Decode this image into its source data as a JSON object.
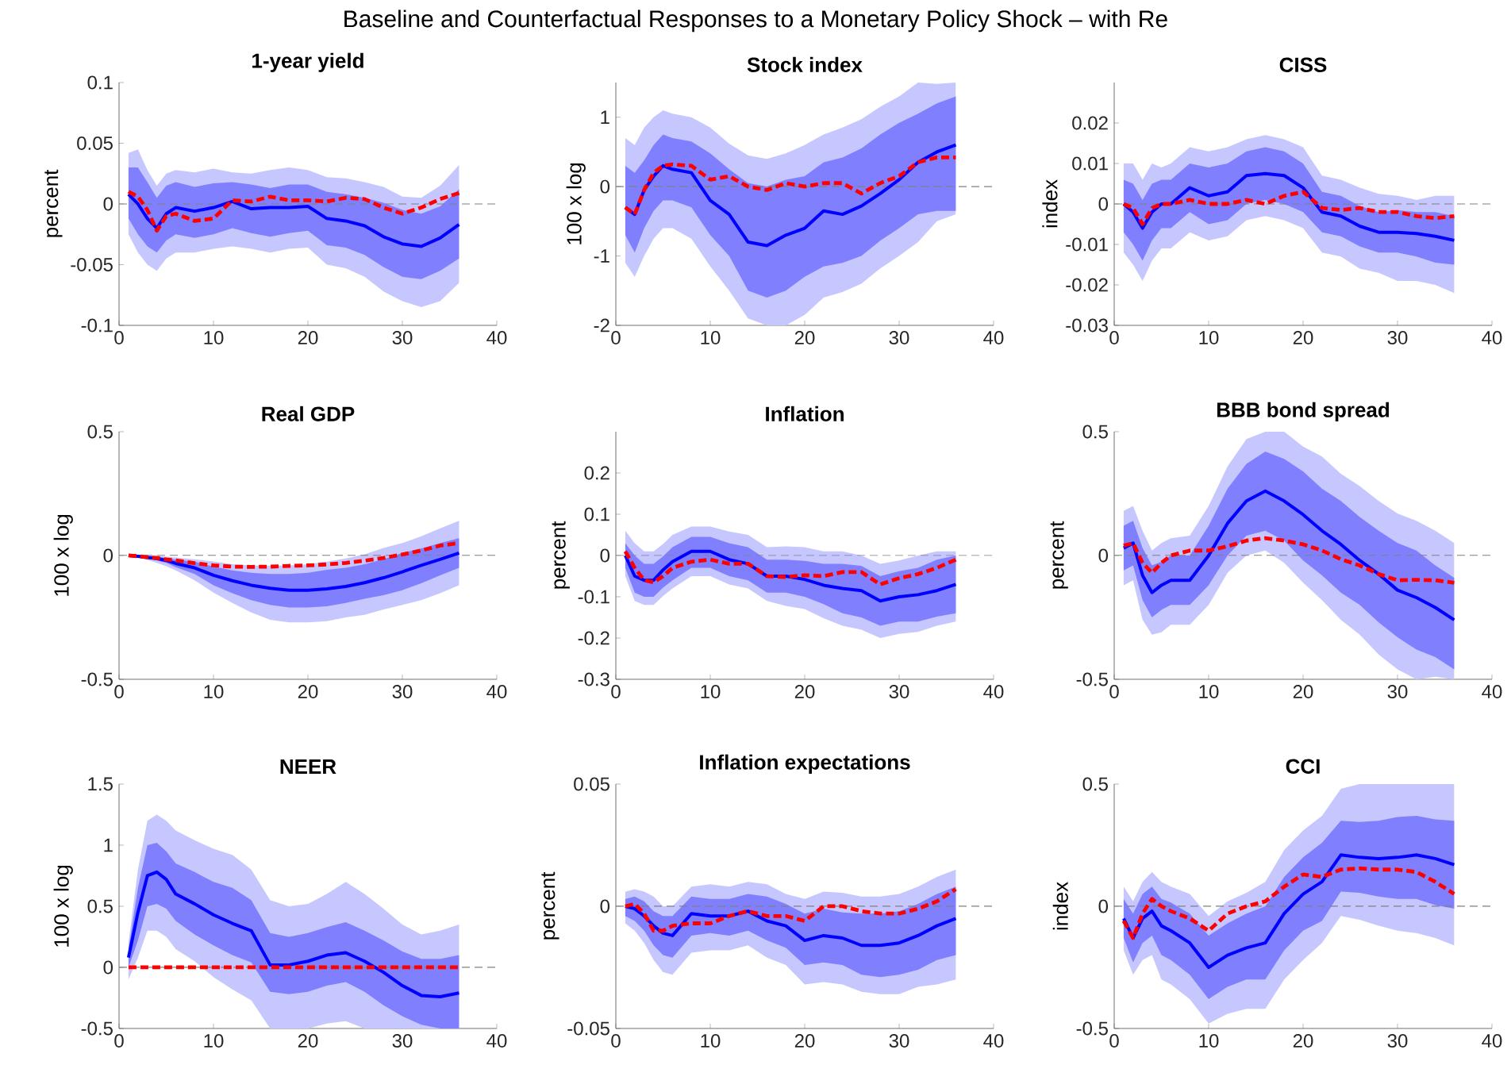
{
  "chart_data": [
    {
      "type": "line",
      "title": "1-year yield",
      "ylabel": "percent",
      "annotations": [
        "Baseline and Counterfactual Responses to a Monetary Policy Shock – with Re"
      ],
      "x": [
        1,
        2,
        3,
        4,
        5,
        6,
        8,
        10,
        12,
        14,
        16,
        18,
        20,
        22,
        24,
        26,
        28,
        30,
        32,
        34,
        36
      ],
      "xlim": [
        0,
        40
      ],
      "xticks": [
        0,
        10,
        20,
        30,
        40
      ],
      "ylim": [
        -0.1,
        0.1
      ],
      "yticks": [
        -0.1,
        -0.05,
        0,
        0.05,
        0.1
      ],
      "ref_lines": [
        {
          "axis": "y",
          "value": 0,
          "color": "#808080",
          "line_style": "dashed"
        }
      ],
      "series": [
        {
          "color": "#0000ff",
          "line_style": "solid",
          "values": [
            0.008,
            0,
            -0.012,
            -0.02,
            -0.008,
            -0.003,
            -0.006,
            -0.003,
            0.002,
            -0.004,
            -0.003,
            -0.003,
            -0.002,
            -0.012,
            -0.014,
            -0.018,
            -0.027,
            -0.033,
            -0.035,
            -0.028,
            -0.017
          ],
          "upper": [
            0.042,
            0.045,
            0.028,
            0.015,
            0.025,
            0.028,
            0.026,
            0.029,
            0.026,
            0.025,
            0.028,
            0.03,
            0.028,
            0.022,
            0.021,
            0.018,
            0.014,
            0.006,
            0.005,
            0.015,
            0.032
          ],
          "lower": [
            -0.025,
            -0.04,
            -0.05,
            -0.055,
            -0.045,
            -0.04,
            -0.04,
            -0.037,
            -0.035,
            -0.037,
            -0.04,
            -0.037,
            -0.036,
            -0.05,
            -0.053,
            -0.06,
            -0.072,
            -0.08,
            -0.085,
            -0.08,
            -0.065
          ]
        },
        {
          "color": "#0000ff",
          "values": [
            null,
            null,
            null,
            null,
            null,
            null,
            null,
            null,
            null,
            null,
            null,
            null,
            null,
            null,
            null,
            null,
            null,
            null,
            null,
            null,
            null
          ],
          "upper": [
            0.03,
            0.03,
            0.018,
            0.005,
            0.015,
            0.018,
            0.014,
            0.017,
            0.018,
            0.016,
            0.013,
            0.016,
            0.016,
            0.01,
            0.008,
            0.005,
            0.001,
            -0.005,
            -0.008,
            -0.002,
            0.012
          ],
          "lower": [
            -0.012,
            -0.025,
            -0.035,
            -0.04,
            -0.03,
            -0.025,
            -0.028,
            -0.025,
            -0.02,
            -0.024,
            -0.027,
            -0.024,
            -0.022,
            -0.034,
            -0.036,
            -0.042,
            -0.052,
            -0.06,
            -0.062,
            -0.055,
            -0.045
          ]
        },
        {
          "color": "#ff0000",
          "line_style": "dashed",
          "values": [
            0.01,
            0.006,
            -0.005,
            -0.022,
            -0.01,
            -0.008,
            -0.014,
            -0.012,
            0.003,
            0.002,
            0.006,
            0.003,
            0.003,
            0.002,
            0.005,
            0.004,
            -0.003,
            -0.008,
            -0.003,
            0.004,
            0.009
          ]
        }
      ]
    },
    {
      "type": "line",
      "title": "Stock index",
      "ylabel": "100 x log",
      "x": [
        1,
        2,
        3,
        4,
        5,
        6,
        8,
        10,
        12,
        14,
        16,
        18,
        20,
        22,
        24,
        26,
        28,
        30,
        32,
        34,
        36
      ],
      "xlim": [
        0,
        40
      ],
      "xticks": [
        0,
        10,
        20,
        30,
        40
      ],
      "ylim": [
        -2,
        1.5
      ],
      "yticks": [
        -2,
        -1,
        0,
        1
      ],
      "ref_lines": [
        {
          "axis": "y",
          "value": 0,
          "color": "#808080",
          "line_style": "dashed"
        }
      ],
      "series": [
        {
          "color": "#0000ff",
          "line_style": "solid",
          "values": [
            -0.3,
            -0.4,
            -0.05,
            0.15,
            0.3,
            0.25,
            0.2,
            -0.2,
            -0.4,
            -0.8,
            -0.85,
            -0.7,
            -0.6,
            -0.35,
            -0.4,
            -0.28,
            -0.1,
            0.1,
            0.35,
            0.5,
            0.6
          ],
          "upper": [
            0.7,
            0.6,
            0.85,
            1.0,
            1.1,
            1.05,
            1.0,
            0.85,
            0.62,
            0.45,
            0.4,
            0.48,
            0.6,
            0.75,
            0.85,
            0.97,
            1.15,
            1.3,
            1.5,
            1.48,
            1.5
          ],
          "lower": [
            -1.1,
            -1.3,
            -1.0,
            -0.75,
            -0.6,
            -0.6,
            -0.75,
            -1.15,
            -1.5,
            -1.9,
            -2.0,
            -2.0,
            -1.85,
            -1.6,
            -1.52,
            -1.4,
            -1.18,
            -1.0,
            -0.8,
            -0.5,
            -0.4
          ]
        },
        {
          "color": "#0000ff",
          "values": [
            null,
            null,
            null,
            null,
            null,
            null,
            null,
            null,
            null,
            null,
            null,
            null,
            null,
            null,
            null,
            null,
            null,
            null,
            null,
            null,
            null
          ],
          "upper": [
            0.3,
            0.2,
            0.38,
            0.6,
            0.75,
            0.7,
            0.65,
            0.48,
            0.25,
            0.05,
            0.0,
            0.1,
            0.15,
            0.35,
            0.42,
            0.55,
            0.75,
            0.92,
            1.05,
            1.2,
            1.3
          ],
          "lower": [
            -0.7,
            -0.95,
            -0.6,
            -0.35,
            -0.2,
            -0.2,
            -0.3,
            -0.7,
            -1.0,
            -1.5,
            -1.6,
            -1.5,
            -1.3,
            -1.15,
            -1.1,
            -1.0,
            -0.78,
            -0.6,
            -0.4,
            -0.35,
            -0.35
          ]
        },
        {
          "color": "#ff0000",
          "line_style": "dashed",
          "values": [
            -0.3,
            -0.4,
            -0.05,
            0.2,
            0.3,
            0.32,
            0.3,
            0.1,
            0.15,
            0.0,
            -0.05,
            0.05,
            0.0,
            0.05,
            0.05,
            -0.1,
            0.05,
            0.15,
            0.35,
            0.42,
            0.42
          ]
        }
      ]
    },
    {
      "type": "line",
      "title": "CISS",
      "ylabel": "index",
      "x": [
        1,
        2,
        3,
        4,
        5,
        6,
        8,
        10,
        12,
        14,
        16,
        18,
        20,
        22,
        24,
        26,
        28,
        30,
        32,
        34,
        36
      ],
      "xlim": [
        0,
        40
      ],
      "xticks": [
        0,
        10,
        20,
        30,
        40
      ],
      "ylim": [
        -0.03,
        0.03
      ],
      "yticks": [
        -0.03,
        -0.02,
        -0.01,
        0,
        0.01,
        0.02
      ],
      "ref_lines": [
        {
          "axis": "y",
          "value": 0,
          "color": "#808080",
          "line_style": "dashed"
        }
      ],
      "series": [
        {
          "color": "#0000ff",
          "line_style": "solid",
          "values": [
            0.0,
            -0.002,
            -0.006,
            -0.002,
            0.0,
            0.0,
            0.004,
            0.002,
            0.003,
            0.007,
            0.0075,
            0.007,
            0.004,
            -0.002,
            -0.003,
            -0.0055,
            -0.007,
            -0.007,
            -0.0073,
            -0.008,
            -0.009
          ],
          "upper": [
            0.01,
            0.01,
            0.006,
            0.01,
            0.009,
            0.01,
            0.014,
            0.013,
            0.014,
            0.016,
            0.017,
            0.016,
            0.014,
            0.007,
            0.006,
            0.004,
            0.0025,
            0.002,
            0.001,
            0.002,
            0.002
          ],
          "lower": [
            -0.012,
            -0.015,
            -0.019,
            -0.014,
            -0.011,
            -0.011,
            -0.007,
            -0.009,
            -0.008,
            -0.004,
            -0.003,
            -0.004,
            -0.006,
            -0.012,
            -0.013,
            -0.016,
            -0.017,
            -0.019,
            -0.019,
            -0.02,
            -0.022
          ]
        },
        {
          "color": "#0000ff",
          "values": [
            null,
            null,
            null,
            null,
            null,
            null,
            null,
            null,
            null,
            null,
            null,
            null,
            null,
            null,
            null,
            null,
            null,
            null,
            null,
            null,
            null
          ],
          "upper": [
            0.006,
            0.005,
            0.001,
            0.005,
            0.006,
            0.006,
            0.01,
            0.009,
            0.01,
            0.013,
            0.014,
            0.013,
            0.01,
            0.003,
            0.002,
            -0.0005,
            -0.002,
            -0.0015,
            -0.002,
            -0.002,
            -0.003
          ],
          "lower": [
            -0.007,
            -0.01,
            -0.014,
            -0.009,
            -0.006,
            -0.006,
            -0.002,
            -0.005,
            -0.004,
            0.0,
            0.001,
            0.0,
            -0.002,
            -0.007,
            -0.008,
            -0.0105,
            -0.012,
            -0.012,
            -0.013,
            -0.0145,
            -0.015
          ]
        },
        {
          "color": "#ff0000",
          "line_style": "dashed",
          "values": [
            0.0,
            -0.001,
            -0.005,
            -0.001,
            0.0,
            0.0,
            0.001,
            0.0,
            0.0,
            0.001,
            0.0,
            0.002,
            0.003,
            -0.001,
            -0.0015,
            -0.001,
            -0.002,
            -0.002,
            -0.003,
            -0.0035,
            -0.003
          ]
        }
      ]
    },
    {
      "type": "line",
      "title": "Real GDP",
      "ylabel": "100 x log",
      "x": [
        1,
        2,
        3,
        4,
        5,
        6,
        8,
        10,
        12,
        14,
        16,
        18,
        20,
        22,
        24,
        26,
        28,
        30,
        32,
        34,
        36
      ],
      "xlim": [
        0,
        40
      ],
      "xticks": [
        0,
        10,
        20,
        30,
        40
      ],
      "ylim": [
        -0.5,
        0.5
      ],
      "yticks": [
        -0.5,
        0,
        0.5
      ],
      "ref_lines": [
        {
          "axis": "y",
          "value": 0,
          "color": "#808080",
          "line_style": "dashed"
        }
      ],
      "series": [
        {
          "color": "#0000ff",
          "line_style": "solid",
          "values": [
            0,
            -0.003,
            -0.008,
            -0.012,
            -0.02,
            -0.032,
            -0.05,
            -0.08,
            -0.102,
            -0.12,
            -0.132,
            -0.14,
            -0.14,
            -0.135,
            -0.125,
            -0.11,
            -0.09,
            -0.066,
            -0.04,
            -0.016,
            0.01
          ],
          "upper": [
            0,
            0.003,
            0.0,
            0.0,
            -0.005,
            -0.008,
            -0.015,
            -0.024,
            -0.035,
            -0.04,
            -0.041,
            -0.04,
            -0.035,
            -0.025,
            -0.012,
            0.005,
            0.03,
            0.05,
            0.078,
            0.11,
            0.14
          ],
          "lower": [
            0,
            -0.008,
            -0.018,
            -0.03,
            -0.043,
            -0.06,
            -0.1,
            -0.15,
            -0.192,
            -0.23,
            -0.26,
            -0.27,
            -0.27,
            -0.265,
            -0.25,
            -0.24,
            -0.218,
            -0.2,
            -0.18,
            -0.152,
            -0.12
          ]
        },
        {
          "color": "#0000ff",
          "values": [
            null,
            null,
            null,
            null,
            null,
            null,
            null,
            null,
            null,
            null,
            null,
            null,
            null,
            null,
            null,
            null,
            null,
            null,
            null,
            null,
            null
          ],
          "upper": [
            0,
            0.0,
            -0.004,
            -0.006,
            -0.01,
            -0.017,
            -0.025,
            -0.045,
            -0.06,
            -0.07,
            -0.075,
            -0.075,
            -0.07,
            -0.058,
            -0.05,
            -0.035,
            -0.015,
            0.01,
            0.028,
            0.05,
            0.07
          ],
          "lower": [
            0,
            -0.005,
            -0.012,
            -0.02,
            -0.03,
            -0.047,
            -0.075,
            -0.12,
            -0.152,
            -0.18,
            -0.2,
            -0.21,
            -0.21,
            -0.205,
            -0.192,
            -0.175,
            -0.16,
            -0.14,
            -0.112,
            -0.08,
            -0.05
          ]
        },
        {
          "color": "#ff0000",
          "line_style": "dashed",
          "values": [
            0,
            -0.003,
            -0.007,
            -0.01,
            -0.016,
            -0.02,
            -0.031,
            -0.04,
            -0.045,
            -0.046,
            -0.045,
            -0.042,
            -0.04,
            -0.036,
            -0.03,
            -0.021,
            -0.01,
            0.004,
            0.02,
            0.04,
            0.05
          ]
        }
      ]
    },
    {
      "type": "line",
      "title": "Inflation",
      "ylabel": "percent",
      "x": [
        1,
        2,
        3,
        4,
        5,
        6,
        8,
        10,
        12,
        14,
        16,
        18,
        20,
        22,
        24,
        26,
        28,
        30,
        32,
        34,
        36
      ],
      "xlim": [
        0,
        40
      ],
      "xticks": [
        0,
        10,
        20,
        30,
        40
      ],
      "ylim": [
        -0.3,
        0.3
      ],
      "yticks": [
        -0.3,
        -0.2,
        -0.1,
        0,
        0.1,
        0.2
      ],
      "ref_lines": [
        {
          "axis": "y",
          "value": 0,
          "color": "#808080",
          "line_style": "dashed"
        }
      ],
      "series": [
        {
          "color": "#0000ff",
          "line_style": "solid",
          "values": [
            0.0,
            -0.05,
            -0.06,
            -0.06,
            -0.035,
            -0.015,
            0.01,
            0.01,
            -0.01,
            -0.02,
            -0.05,
            -0.05,
            -0.058,
            -0.072,
            -0.08,
            -0.085,
            -0.11,
            -0.1,
            -0.095,
            -0.085,
            -0.07
          ],
          "upper": [
            0.06,
            0.03,
            0.01,
            0.01,
            0.028,
            0.05,
            0.07,
            0.07,
            0.058,
            0.05,
            0.02,
            0.022,
            0.02,
            0.01,
            0.01,
            0.0,
            -0.02,
            -0.012,
            0.0,
            0.01,
            0.01
          ],
          "lower": [
            -0.05,
            -0.11,
            -0.12,
            -0.12,
            -0.098,
            -0.08,
            -0.05,
            -0.05,
            -0.07,
            -0.08,
            -0.11,
            -0.122,
            -0.13,
            -0.152,
            -0.17,
            -0.18,
            -0.2,
            -0.19,
            -0.185,
            -0.17,
            -0.16
          ]
        },
        {
          "color": "#0000ff",
          "values": [
            null,
            null,
            null,
            null,
            null,
            null,
            null,
            null,
            null,
            null,
            null,
            null,
            null,
            null,
            null,
            null,
            null,
            null,
            null,
            null,
            null
          ],
          "upper": [
            0.03,
            0.0,
            -0.02,
            -0.02,
            -0.002,
            0.02,
            0.045,
            0.045,
            0.03,
            0.02,
            -0.01,
            -0.01,
            -0.013,
            -0.02,
            -0.02,
            -0.025,
            -0.05,
            -0.038,
            -0.03,
            -0.01,
            0.0
          ],
          "lower": [
            -0.03,
            -0.09,
            -0.1,
            -0.1,
            -0.078,
            -0.06,
            -0.03,
            -0.03,
            -0.05,
            -0.06,
            -0.09,
            -0.09,
            -0.1,
            -0.118,
            -0.14,
            -0.15,
            -0.17,
            -0.16,
            -0.16,
            -0.148,
            -0.14
          ]
        },
        {
          "color": "#ff0000",
          "line_style": "dashed",
          "values": [
            0.01,
            -0.03,
            -0.06,
            -0.065,
            -0.05,
            -0.03,
            -0.015,
            -0.01,
            -0.02,
            -0.02,
            -0.05,
            -0.052,
            -0.048,
            -0.05,
            -0.04,
            -0.04,
            -0.07,
            -0.055,
            -0.045,
            -0.03,
            -0.01
          ]
        }
      ]
    },
    {
      "type": "line",
      "title": "BBB bond spread",
      "ylabel": "percent",
      "x": [
        1,
        2,
        3,
        4,
        5,
        6,
        8,
        10,
        12,
        14,
        16,
        18,
        20,
        22,
        24,
        26,
        28,
        30,
        32,
        34,
        36
      ],
      "xlim": [
        0,
        40
      ],
      "xticks": [
        0,
        10,
        20,
        30,
        40
      ],
      "ylim": [
        -0.5,
        0.5
      ],
      "yticks": [
        -0.5,
        0,
        0.5
      ],
      "ref_lines": [
        {
          "axis": "y",
          "value": 0,
          "color": "#808080",
          "line_style": "dashed"
        }
      ],
      "series": [
        {
          "color": "#0000ff",
          "line_style": "solid",
          "values": [
            0.03,
            0.05,
            -0.08,
            -0.15,
            -0.12,
            -0.1,
            -0.1,
            0.0,
            0.13,
            0.22,
            0.26,
            0.22,
            0.165,
            0.1,
            0.045,
            -0.02,
            -0.075,
            -0.14,
            -0.17,
            -0.21,
            -0.26
          ],
          "upper": [
            0.18,
            0.2,
            0.1,
            0.02,
            0.05,
            0.07,
            0.08,
            0.2,
            0.36,
            0.47,
            0.5,
            0.5,
            0.44,
            0.4,
            0.33,
            0.28,
            0.22,
            0.17,
            0.14,
            0.1,
            0.05
          ],
          "lower": [
            -0.12,
            -0.1,
            -0.26,
            -0.32,
            -0.31,
            -0.28,
            -0.28,
            -0.2,
            -0.07,
            0.0,
            0.02,
            -0.03,
            -0.11,
            -0.18,
            -0.26,
            -0.32,
            -0.4,
            -0.46,
            -0.5,
            -0.49,
            -0.5
          ]
        },
        {
          "color": "#0000ff",
          "values": [
            null,
            null,
            null,
            null,
            null,
            null,
            null,
            null,
            null,
            null,
            null,
            null,
            null,
            null,
            null,
            null,
            null,
            null,
            null,
            null,
            null
          ],
          "upper": [
            0.12,
            0.14,
            0.03,
            -0.04,
            -0.025,
            0.0,
            0.0,
            0.12,
            0.27,
            0.37,
            0.42,
            0.39,
            0.34,
            0.27,
            0.22,
            0.155,
            0.1,
            0.05,
            0.02,
            -0.04,
            -0.09
          ],
          "lower": [
            -0.06,
            -0.04,
            -0.18,
            -0.25,
            -0.22,
            -0.2,
            -0.2,
            -0.12,
            0.0,
            0.08,
            0.1,
            0.06,
            -0.02,
            -0.08,
            -0.15,
            -0.2,
            -0.27,
            -0.33,
            -0.38,
            -0.41,
            -0.46
          ]
        },
        {
          "color": "#ff0000",
          "line_style": "dashed",
          "values": [
            0.04,
            0.05,
            -0.03,
            -0.07,
            -0.03,
            0.0,
            0.02,
            0.02,
            0.037,
            0.06,
            0.07,
            0.06,
            0.045,
            0.02,
            -0.015,
            -0.04,
            -0.075,
            -0.1,
            -0.098,
            -0.1,
            -0.11
          ]
        }
      ]
    },
    {
      "type": "line",
      "title": "NEER",
      "ylabel": "100 x log",
      "x": [
        1,
        2,
        3,
        4,
        5,
        6,
        8,
        10,
        12,
        14,
        16,
        18,
        20,
        22,
        24,
        26,
        28,
        30,
        32,
        34,
        36
      ],
      "xlim": [
        0,
        40
      ],
      "xticks": [
        0,
        10,
        20,
        30,
        40
      ],
      "ylim": [
        -0.5,
        1.5
      ],
      "yticks": [
        -0.5,
        0,
        0.5,
        1,
        1.5
      ],
      "ref_lines": [
        {
          "axis": "y",
          "value": 0,
          "color": "#808080",
          "line_style": "dashed"
        }
      ],
      "series": [
        {
          "color": "#0000ff",
          "line_style": "solid",
          "values": [
            0.08,
            0.45,
            0.75,
            0.78,
            0.72,
            0.6,
            0.52,
            0.43,
            0.36,
            0.3,
            0.02,
            0.02,
            0.05,
            0.1,
            0.12,
            0.05,
            -0.04,
            -0.15,
            -0.23,
            -0.24,
            -0.21
          ],
          "upper": [
            0.2,
            0.8,
            1.2,
            1.25,
            1.2,
            1.12,
            1.04,
            0.97,
            0.92,
            0.8,
            0.55,
            0.5,
            0.52,
            0.6,
            0.7,
            0.6,
            0.48,
            0.35,
            0.27,
            0.3,
            0.35
          ],
          "lower": [
            -0.1,
            0.08,
            0.3,
            0.3,
            0.25,
            0.15,
            0.05,
            -0.08,
            -0.18,
            -0.27,
            -0.5,
            -0.5,
            -0.5,
            -0.46,
            -0.44,
            -0.5,
            -0.5,
            -0.5,
            -0.5,
            -0.5,
            -0.5
          ]
        },
        {
          "color": "#0000ff",
          "values": [
            null,
            null,
            null,
            null,
            null,
            null,
            null,
            null,
            null,
            null,
            null,
            null,
            null,
            null,
            null,
            null,
            null,
            null,
            null,
            null,
            null
          ],
          "upper": [
            0.15,
            0.65,
            1.0,
            1.02,
            0.95,
            0.85,
            0.78,
            0.7,
            0.65,
            0.55,
            0.28,
            0.25,
            0.28,
            0.33,
            0.37,
            0.3,
            0.22,
            0.13,
            0.07,
            0.07,
            0.1
          ],
          "lower": [
            0.0,
            0.22,
            0.5,
            0.52,
            0.48,
            0.38,
            0.27,
            0.18,
            0.1,
            0.04,
            -0.2,
            -0.22,
            -0.2,
            -0.15,
            -0.12,
            -0.2,
            -0.31,
            -0.4,
            -0.47,
            -0.5,
            -0.5
          ]
        },
        {
          "color": "#ff0000",
          "line_style": "dashed",
          "x": [
            1,
            36
          ],
          "values": [
            0,
            0
          ]
        }
      ]
    },
    {
      "type": "line",
      "title": "Inflation expectations",
      "ylabel": "percent",
      "x": [
        1,
        2,
        3,
        4,
        5,
        6,
        8,
        10,
        12,
        14,
        16,
        18,
        20,
        22,
        24,
        26,
        28,
        30,
        32,
        34,
        36
      ],
      "xlim": [
        0,
        40
      ],
      "xticks": [
        0,
        10,
        20,
        30,
        40
      ],
      "ylim": [
        -0.05,
        0.05
      ],
      "yticks": [
        -0.05,
        0,
        0.05
      ],
      "ref_lines": [
        {
          "axis": "y",
          "value": 0,
          "color": "#808080",
          "line_style": "dashed"
        }
      ],
      "series": [
        {
          "color": "#0000ff",
          "line_style": "solid",
          "values": [
            0.0,
            -0.001,
            -0.004,
            -0.008,
            -0.011,
            -0.012,
            -0.003,
            -0.004,
            -0.004,
            -0.002,
            -0.006,
            -0.008,
            -0.014,
            -0.012,
            -0.013,
            -0.016,
            -0.016,
            -0.015,
            -0.012,
            -0.008,
            -0.005
          ],
          "upper": [
            0.006,
            0.007,
            0.006,
            0.004,
            0.0,
            0.0,
            0.008,
            0.009,
            0.008,
            0.01,
            0.009,
            0.005,
            0.003,
            0.006,
            0.0055,
            0.004,
            0.004,
            0.005,
            0.008,
            0.012,
            0.015
          ],
          "lower": [
            -0.007,
            -0.01,
            -0.015,
            -0.022,
            -0.027,
            -0.028,
            -0.019,
            -0.018,
            -0.018,
            -0.016,
            -0.021,
            -0.024,
            -0.032,
            -0.031,
            -0.032,
            -0.035,
            -0.036,
            -0.036,
            -0.033,
            -0.032,
            -0.03
          ]
        },
        {
          "color": "#0000ff",
          "values": [
            null,
            null,
            null,
            null,
            null,
            null,
            null,
            null,
            null,
            null,
            null,
            null,
            null,
            null,
            null,
            null,
            null,
            null,
            null,
            null,
            null
          ],
          "upper": [
            0.003,
            0.004,
            0.002,
            -0.002,
            -0.004,
            -0.004,
            0.004,
            0.003,
            0.003,
            0.005,
            0.004,
            0.001,
            -0.003,
            -0.001,
            -0.0025,
            -0.003,
            -0.003,
            -0.002,
            0.001,
            0.005,
            0.008
          ],
          "lower": [
            -0.004,
            -0.006,
            -0.01,
            -0.016,
            -0.02,
            -0.021,
            -0.012,
            -0.011,
            -0.012,
            -0.01,
            -0.014,
            -0.017,
            -0.024,
            -0.023,
            -0.024,
            -0.028,
            -0.029,
            -0.028,
            -0.026,
            -0.022,
            -0.02
          ]
        },
        {
          "color": "#ff0000",
          "line_style": "dashed",
          "values": [
            0.0,
            0.001,
            -0.003,
            -0.01,
            -0.01,
            -0.008,
            -0.007,
            -0.007,
            -0.004,
            -0.002,
            -0.004,
            -0.004,
            -0.006,
            0.0,
            0.0,
            -0.002,
            -0.003,
            -0.003,
            -0.001,
            0.002,
            0.007
          ]
        }
      ]
    },
    {
      "type": "line",
      "title": "CCI",
      "ylabel": "index",
      "x": [
        1,
        2,
        3,
        4,
        5,
        6,
        8,
        10,
        12,
        14,
        16,
        18,
        20,
        22,
        24,
        26,
        28,
        30,
        32,
        34,
        36
      ],
      "xlim": [
        0,
        40
      ],
      "xticks": [
        0,
        10,
        20,
        30,
        40
      ],
      "ylim": [
        -0.5,
        0.5
      ],
      "yticks": [
        -0.5,
        0,
        0.5
      ],
      "ref_lines": [
        {
          "axis": "y",
          "value": 0,
          "color": "#808080",
          "line_style": "dashed"
        }
      ],
      "series": [
        {
          "color": "#0000ff",
          "line_style": "solid",
          "values": [
            -0.05,
            -0.13,
            -0.05,
            -0.02,
            -0.08,
            -0.1,
            -0.15,
            -0.25,
            -0.2,
            -0.17,
            -0.15,
            -0.03,
            0.05,
            0.1,
            0.21,
            0.2,
            0.195,
            0.2,
            0.21,
            0.195,
            0.17
          ],
          "upper": [
            0.08,
            0.02,
            0.1,
            0.14,
            0.1,
            0.08,
            0.05,
            -0.04,
            0.02,
            0.055,
            0.1,
            0.23,
            0.31,
            0.37,
            0.48,
            0.5,
            0.5,
            0.5,
            0.5,
            0.5,
            0.5
          ],
          "lower": [
            -0.18,
            -0.28,
            -0.22,
            -0.2,
            -0.3,
            -0.32,
            -0.38,
            -0.48,
            -0.44,
            -0.42,
            -0.42,
            -0.3,
            -0.22,
            -0.15,
            -0.04,
            -0.055,
            -0.08,
            -0.1,
            -0.11,
            -0.13,
            -0.16
          ]
        },
        {
          "color": "#0000ff",
          "values": [
            null,
            null,
            null,
            null,
            null,
            null,
            null,
            null,
            null,
            null,
            null,
            null,
            null,
            null,
            null,
            null,
            null,
            null,
            null,
            null,
            null
          ],
          "upper": [
            0.03,
            -0.03,
            0.05,
            0.08,
            0.03,
            0.015,
            -0.03,
            -0.12,
            -0.07,
            -0.03,
            0.0,
            0.12,
            0.2,
            0.26,
            0.35,
            0.345,
            0.35,
            0.365,
            0.37,
            0.355,
            0.35
          ],
          "lower": [
            -0.13,
            -0.23,
            -0.15,
            -0.12,
            -0.2,
            -0.22,
            -0.28,
            -0.38,
            -0.33,
            -0.3,
            -0.3,
            -0.18,
            -0.1,
            -0.06,
            0.06,
            0.055,
            0.04,
            0.03,
            0.03,
            0.005,
            -0.01
          ]
        },
        {
          "color": "#ff0000",
          "line_style": "dashed",
          "values": [
            -0.06,
            -0.13,
            -0.03,
            0.03,
            0.0,
            -0.02,
            -0.05,
            -0.1,
            -0.03,
            0.0,
            0.02,
            0.08,
            0.13,
            0.12,
            0.15,
            0.155,
            0.15,
            0.15,
            0.14,
            0.1,
            0.05
          ]
        }
      ]
    }
  ]
}
